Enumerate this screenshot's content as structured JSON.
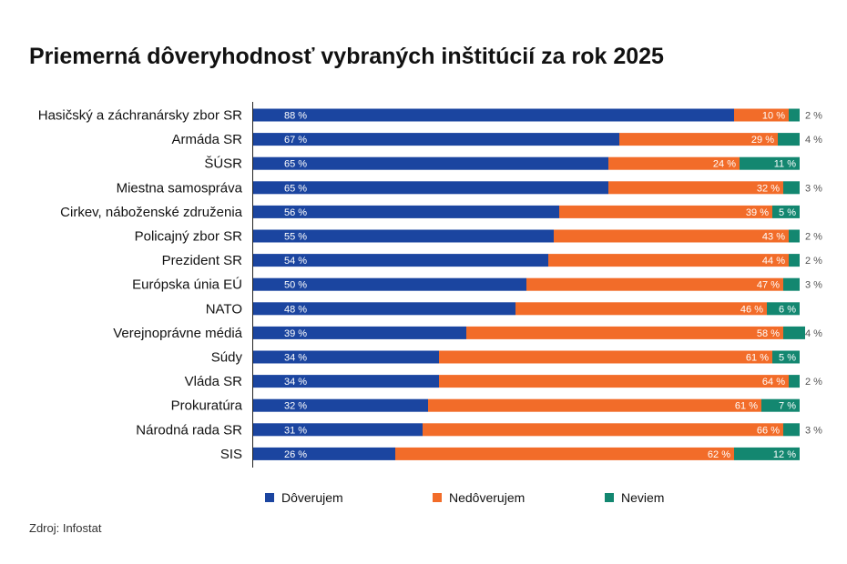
{
  "chart_data": {
    "type": "bar",
    "orientation": "horizontal",
    "stacked": true,
    "title": "Priemerná dôveryhodnosť vybraných inštitúcií za rok 2025",
    "categories": [
      "Hasičský a záchranársky zbor SR",
      "Armáda SR",
      "ŠÚSR",
      "Miestna samospráva",
      "Cirkev, náboženské združenia",
      "Policajný zbor SR",
      "Prezident SR",
      "Európska únia EÚ",
      "NATO",
      "Verejnoprávne médiá",
      "Súdy",
      "Vláda SR",
      "Prokuratúra",
      "Národná rada SR",
      "SIS"
    ],
    "series": [
      {
        "name": "Dôverujem",
        "color": "#1b45a0",
        "values": [
          88,
          67,
          65,
          65,
          56,
          55,
          54,
          50,
          48,
          39,
          34,
          34,
          32,
          31,
          26
        ],
        "labels": [
          "88 %",
          "67 %",
          "65 %",
          "65 %",
          "56 %",
          "55 %",
          "54 %",
          "50 %",
          "48 %",
          "39 %",
          "34 %",
          "34 %",
          "32 %",
          "31 %",
          "26 %"
        ]
      },
      {
        "name": "Nedôverujem",
        "color": "#f26c29",
        "values": [
          10,
          29,
          24,
          32,
          39,
          43,
          44,
          47,
          46,
          58,
          61,
          64,
          61,
          66,
          62
        ],
        "labels": [
          "10 %",
          "29 %",
          "24 %",
          "32 %",
          "39 %",
          "43 %",
          "44 %",
          "47 %",
          "46 %",
          "58 %",
          "61 %",
          "64 %",
          "61 %",
          "66 %",
          "62 %"
        ]
      },
      {
        "name": "Neviem",
        "color": "#138770",
        "values": [
          2,
          4,
          11,
          3,
          5,
          2,
          2,
          3,
          6,
          4,
          5,
          2,
          7,
          3,
          12
        ],
        "labels": [
          "2 %",
          "4 %",
          "11 %",
          "3 %",
          "5 %",
          "2 %",
          "2 %",
          "3 %",
          "6 %",
          "4 %",
          "5 %",
          "2 %",
          "7 %",
          "3 %",
          "12 %"
        ],
        "label_inside": [
          false,
          false,
          true,
          false,
          true,
          false,
          false,
          false,
          true,
          false,
          true,
          false,
          true,
          false,
          true
        ]
      }
    ],
    "xlim": [
      0,
      100
    ],
    "grid": false,
    "legend_position": "bottom",
    "source": "Zdroj: Infostat"
  }
}
